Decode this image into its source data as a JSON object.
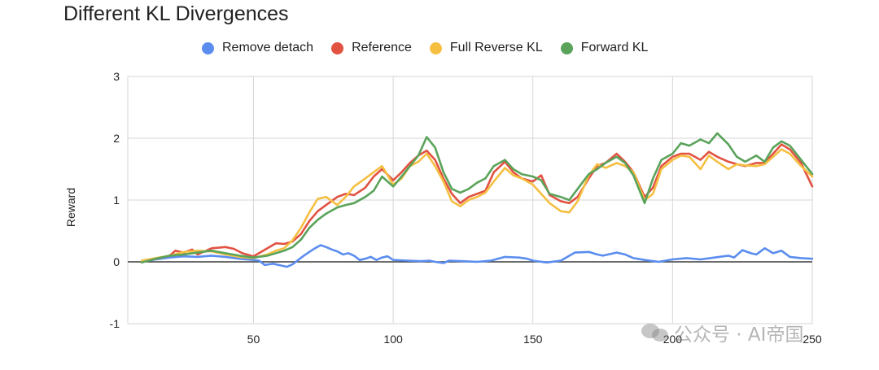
{
  "chart_data": {
    "type": "line",
    "title": "Different KL Divergences",
    "xlabel": "",
    "ylabel": "Reward",
    "xlim": [
      5,
      250
    ],
    "ylim": [
      -1,
      3
    ],
    "xticks": [
      50,
      100,
      150,
      200,
      250
    ],
    "yticks": [
      -1,
      0,
      1,
      2,
      3
    ],
    "grid": true,
    "legend_position": "top",
    "series": [
      {
        "name": "Remove detach",
        "color": "#5b8def",
        "points": [
          [
            10,
            0.0
          ],
          [
            15,
            0.04
          ],
          [
            20,
            0.07
          ],
          [
            25,
            0.09
          ],
          [
            30,
            0.08
          ],
          [
            35,
            0.1
          ],
          [
            40,
            0.08
          ],
          [
            45,
            0.05
          ],
          [
            50,
            0.03
          ],
          [
            52,
            0.02
          ],
          [
            54,
            -0.05
          ],
          [
            57,
            -0.03
          ],
          [
            60,
            -0.06
          ],
          [
            62,
            -0.08
          ],
          [
            64,
            -0.04
          ],
          [
            66,
            0.03
          ],
          [
            68,
            0.1
          ],
          [
            70,
            0.16
          ],
          [
            72,
            0.22
          ],
          [
            74,
            0.27
          ],
          [
            76,
            0.24
          ],
          [
            78,
            0.2
          ],
          [
            80,
            0.17
          ],
          [
            82,
            0.12
          ],
          [
            84,
            0.14
          ],
          [
            86,
            0.1
          ],
          [
            88,
            0.03
          ],
          [
            90,
            0.05
          ],
          [
            92,
            0.08
          ],
          [
            94,
            0.03
          ],
          [
            96,
            0.07
          ],
          [
            98,
            0.09
          ],
          [
            100,
            0.03
          ],
          [
            105,
            0.02
          ],
          [
            110,
            0.01
          ],
          [
            113,
            0.02
          ],
          [
            115,
            0.0
          ],
          [
            118,
            -0.02
          ],
          [
            120,
            0.02
          ],
          [
            125,
            0.01
          ],
          [
            130,
            0.0
          ],
          [
            135,
            0.02
          ],
          [
            140,
            0.08
          ],
          [
            145,
            0.07
          ],
          [
            148,
            0.05
          ],
          [
            150,
            0.02
          ],
          [
            155,
            -0.01
          ],
          [
            160,
            0.02
          ],
          [
            165,
            0.15
          ],
          [
            170,
            0.16
          ],
          [
            173,
            0.12
          ],
          [
            175,
            0.1
          ],
          [
            180,
            0.15
          ],
          [
            183,
            0.12
          ],
          [
            186,
            0.06
          ],
          [
            190,
            0.03
          ],
          [
            195,
            0.0
          ],
          [
            200,
            0.04
          ],
          [
            205,
            0.06
          ],
          [
            210,
            0.04
          ],
          [
            215,
            0.07
          ],
          [
            220,
            0.1
          ],
          [
            222,
            0.07
          ],
          [
            225,
            0.19
          ],
          [
            228,
            0.14
          ],
          [
            230,
            0.12
          ],
          [
            233,
            0.22
          ],
          [
            236,
            0.14
          ],
          [
            239,
            0.18
          ],
          [
            242,
            0.08
          ],
          [
            246,
            0.06
          ],
          [
            250,
            0.05
          ]
        ]
      },
      {
        "name": "Reference",
        "color": "#e15241",
        "points": [
          [
            10,
            0.0
          ],
          [
            15,
            0.05
          ],
          [
            20,
            0.1
          ],
          [
            22,
            0.18
          ],
          [
            25,
            0.15
          ],
          [
            28,
            0.2
          ],
          [
            30,
            0.12
          ],
          [
            35,
            0.22
          ],
          [
            40,
            0.24
          ],
          [
            43,
            0.21
          ],
          [
            46,
            0.14
          ],
          [
            50,
            0.09
          ],
          [
            55,
            0.22
          ],
          [
            58,
            0.3
          ],
          [
            61,
            0.29
          ],
          [
            64,
            0.33
          ],
          [
            67,
            0.45
          ],
          [
            70,
            0.66
          ],
          [
            73,
            0.82
          ],
          [
            76,
            0.92
          ],
          [
            80,
            1.05
          ],
          [
            83,
            1.1
          ],
          [
            86,
            1.08
          ],
          [
            90,
            1.2
          ],
          [
            93,
            1.38
          ],
          [
            96,
            1.5
          ],
          [
            100,
            1.32
          ],
          [
            103,
            1.45
          ],
          [
            106,
            1.6
          ],
          [
            109,
            1.72
          ],
          [
            112,
            1.8
          ],
          [
            115,
            1.65
          ],
          [
            118,
            1.35
          ],
          [
            121,
            1.1
          ],
          [
            124,
            0.95
          ],
          [
            127,
            1.05
          ],
          [
            130,
            1.1
          ],
          [
            133,
            1.15
          ],
          [
            136,
            1.45
          ],
          [
            140,
            1.62
          ],
          [
            143,
            1.45
          ],
          [
            146,
            1.35
          ],
          [
            150,
            1.3
          ],
          [
            153,
            1.4
          ],
          [
            156,
            1.08
          ],
          [
            160,
            0.98
          ],
          [
            163,
            0.95
          ],
          [
            166,
            1.05
          ],
          [
            170,
            1.35
          ],
          [
            173,
            1.55
          ],
          [
            176,
            1.6
          ],
          [
            180,
            1.75
          ],
          [
            183,
            1.62
          ],
          [
            186,
            1.45
          ],
          [
            190,
            1.05
          ],
          [
            193,
            1.2
          ],
          [
            196,
            1.55
          ],
          [
            200,
            1.7
          ],
          [
            203,
            1.75
          ],
          [
            206,
            1.75
          ],
          [
            210,
            1.65
          ],
          [
            213,
            1.78
          ],
          [
            216,
            1.7
          ],
          [
            220,
            1.62
          ],
          [
            223,
            1.58
          ],
          [
            226,
            1.55
          ],
          [
            230,
            1.6
          ],
          [
            233,
            1.6
          ],
          [
            236,
            1.75
          ],
          [
            239,
            1.9
          ],
          [
            242,
            1.82
          ],
          [
            246,
            1.6
          ],
          [
            250,
            1.22
          ]
        ]
      },
      {
        "name": "Full Reverse KL",
        "color": "#f5bf42",
        "points": [
          [
            10,
            0.02
          ],
          [
            15,
            0.06
          ],
          [
            20,
            0.1
          ],
          [
            25,
            0.16
          ],
          [
            30,
            0.18
          ],
          [
            35,
            0.17
          ],
          [
            40,
            0.12
          ],
          [
            45,
            0.08
          ],
          [
            50,
            0.06
          ],
          [
            55,
            0.12
          ],
          [
            58,
            0.18
          ],
          [
            61,
            0.22
          ],
          [
            64,
            0.35
          ],
          [
            67,
            0.55
          ],
          [
            70,
            0.8
          ],
          [
            73,
            1.02
          ],
          [
            76,
            1.05
          ],
          [
            80,
            0.92
          ],
          [
            83,
            1.05
          ],
          [
            86,
            1.22
          ],
          [
            90,
            1.35
          ],
          [
            93,
            1.45
          ],
          [
            96,
            1.55
          ],
          [
            100,
            1.25
          ],
          [
            103,
            1.35
          ],
          [
            106,
            1.55
          ],
          [
            109,
            1.62
          ],
          [
            112,
            1.75
          ],
          [
            115,
            1.55
          ],
          [
            118,
            1.3
          ],
          [
            121,
            0.98
          ],
          [
            124,
            0.9
          ],
          [
            127,
            1.0
          ],
          [
            130,
            1.05
          ],
          [
            133,
            1.12
          ],
          [
            136,
            1.3
          ],
          [
            140,
            1.52
          ],
          [
            143,
            1.4
          ],
          [
            146,
            1.35
          ],
          [
            150,
            1.25
          ],
          [
            153,
            1.1
          ],
          [
            156,
            0.95
          ],
          [
            160,
            0.82
          ],
          [
            163,
            0.8
          ],
          [
            166,
            0.98
          ],
          [
            170,
            1.4
          ],
          [
            173,
            1.58
          ],
          [
            176,
            1.52
          ],
          [
            180,
            1.6
          ],
          [
            183,
            1.55
          ],
          [
            186,
            1.45
          ],
          [
            190,
            1.0
          ],
          [
            193,
            1.1
          ],
          [
            196,
            1.5
          ],
          [
            200,
            1.65
          ],
          [
            203,
            1.72
          ],
          [
            206,
            1.7
          ],
          [
            210,
            1.5
          ],
          [
            213,
            1.72
          ],
          [
            216,
            1.62
          ],
          [
            220,
            1.5
          ],
          [
            223,
            1.58
          ],
          [
            226,
            1.56
          ],
          [
            230,
            1.55
          ],
          [
            233,
            1.58
          ],
          [
            236,
            1.7
          ],
          [
            239,
            1.82
          ],
          [
            242,
            1.75
          ],
          [
            246,
            1.55
          ],
          [
            250,
            1.38
          ]
        ]
      },
      {
        "name": "Forward KL",
        "color": "#5aa35a",
        "points": [
          [
            10,
            -0.01
          ],
          [
            15,
            0.05
          ],
          [
            20,
            0.1
          ],
          [
            25,
            0.12
          ],
          [
            30,
            0.15
          ],
          [
            35,
            0.18
          ],
          [
            40,
            0.14
          ],
          [
            45,
            0.1
          ],
          [
            50,
            0.07
          ],
          [
            55,
            0.1
          ],
          [
            58,
            0.14
          ],
          [
            61,
            0.18
          ],
          [
            64,
            0.24
          ],
          [
            67,
            0.36
          ],
          [
            70,
            0.55
          ],
          [
            73,
            0.68
          ],
          [
            76,
            0.78
          ],
          [
            80,
            0.88
          ],
          [
            83,
            0.92
          ],
          [
            86,
            0.95
          ],
          [
            90,
            1.05
          ],
          [
            93,
            1.15
          ],
          [
            96,
            1.38
          ],
          [
            100,
            1.22
          ],
          [
            103,
            1.38
          ],
          [
            106,
            1.55
          ],
          [
            109,
            1.72
          ],
          [
            112,
            2.02
          ],
          [
            115,
            1.85
          ],
          [
            118,
            1.45
          ],
          [
            121,
            1.18
          ],
          [
            124,
            1.12
          ],
          [
            127,
            1.18
          ],
          [
            130,
            1.28
          ],
          [
            133,
            1.35
          ],
          [
            136,
            1.55
          ],
          [
            140,
            1.65
          ],
          [
            143,
            1.5
          ],
          [
            146,
            1.42
          ],
          [
            150,
            1.38
          ],
          [
            153,
            1.32
          ],
          [
            156,
            1.1
          ],
          [
            160,
            1.05
          ],
          [
            163,
            1.0
          ],
          [
            166,
            1.18
          ],
          [
            170,
            1.42
          ],
          [
            173,
            1.5
          ],
          [
            176,
            1.6
          ],
          [
            180,
            1.7
          ],
          [
            183,
            1.6
          ],
          [
            186,
            1.4
          ],
          [
            190,
            0.95
          ],
          [
            193,
            1.35
          ],
          [
            196,
            1.65
          ],
          [
            200,
            1.75
          ],
          [
            203,
            1.92
          ],
          [
            206,
            1.88
          ],
          [
            210,
            1.98
          ],
          [
            213,
            1.92
          ],
          [
            216,
            2.08
          ],
          [
            220,
            1.9
          ],
          [
            223,
            1.7
          ],
          [
            226,
            1.62
          ],
          [
            230,
            1.72
          ],
          [
            233,
            1.62
          ],
          [
            236,
            1.85
          ],
          [
            239,
            1.95
          ],
          [
            242,
            1.88
          ],
          [
            246,
            1.65
          ],
          [
            250,
            1.42
          ]
        ]
      }
    ]
  },
  "watermark": {
    "text": "公众号 · AI帝国"
  }
}
